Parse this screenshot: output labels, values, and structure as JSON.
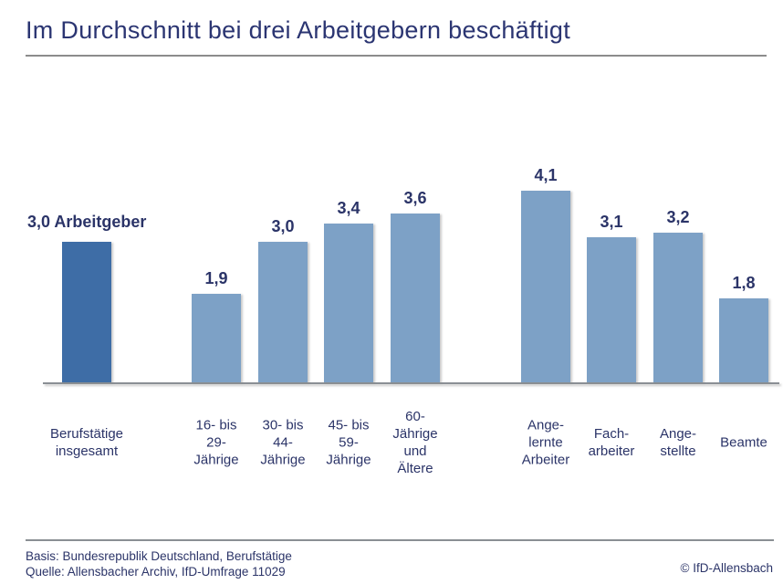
{
  "title": "Im Durchschnitt bei drei Arbeitgebern beschäftigt",
  "chart_data": {
    "type": "bar",
    "title": "Im Durchschnitt bei drei Arbeitgebern beschäftigt",
    "ylim": [
      0,
      4.5
    ],
    "grid": false,
    "legend": "none",
    "categories": [
      "Berufstätige insgesamt",
      "16- bis 29-Jährige",
      "30- bis 44-Jährige",
      "45- bis 59-Jährige",
      "60-Jährige und Ältere",
      "Angelernte Arbeiter",
      "Facharbeiter",
      "Angestellte",
      "Beamte"
    ],
    "values": [
      3.0,
      1.9,
      3.0,
      3.4,
      3.6,
      4.1,
      3.1,
      3.2,
      1.8
    ],
    "bars": [
      {
        "category_lines": [
          "Berufstätige",
          "insgesamt"
        ],
        "value": 3.0,
        "value_label": "3,0 Arbeitgeber",
        "highlight": true,
        "group": 0
      },
      {
        "category_lines": [
          "16- bis",
          "29-",
          "Jährige"
        ],
        "value": 1.9,
        "value_label": "1,9",
        "highlight": false,
        "group": 1
      },
      {
        "category_lines": [
          "30- bis",
          "44-",
          "Jährige"
        ],
        "value": 3.0,
        "value_label": "3,0",
        "highlight": false,
        "group": 1
      },
      {
        "category_lines": [
          "45- bis",
          "59-",
          "Jährige"
        ],
        "value": 3.4,
        "value_label": "3,4",
        "highlight": false,
        "group": 1
      },
      {
        "category_lines": [
          "60-",
          "Jährige",
          "und",
          "Ältere"
        ],
        "value": 3.6,
        "value_label": "3,6",
        "highlight": false,
        "group": 1
      },
      {
        "category_lines": [
          "Ange-",
          "lernte",
          "Arbeiter"
        ],
        "value": 4.1,
        "value_label": "4,1",
        "highlight": false,
        "group": 2
      },
      {
        "category_lines": [
          "Fach-",
          "arbeiter"
        ],
        "value": 3.1,
        "value_label": "3,1",
        "highlight": false,
        "group": 2
      },
      {
        "category_lines": [
          "Ange-",
          "stellte"
        ],
        "value": 3.2,
        "value_label": "3,2",
        "highlight": false,
        "group": 2
      },
      {
        "category_lines": [
          "Beamte"
        ],
        "value": 1.8,
        "value_label": "1,8",
        "highlight": false,
        "group": 2
      }
    ],
    "colors": {
      "highlight_bar": "#3E6DA6",
      "bar": "#7DA1C6",
      "text": "#2B3468",
      "axis": "#8A8F94"
    }
  },
  "footer": {
    "basis": "Basis: Bundesrepublik Deutschland, Berufstätige",
    "quelle": "Quelle: Allensbacher Archiv, IfD-Umfrage 11029",
    "copyright": "© IfD-Allensbach"
  }
}
